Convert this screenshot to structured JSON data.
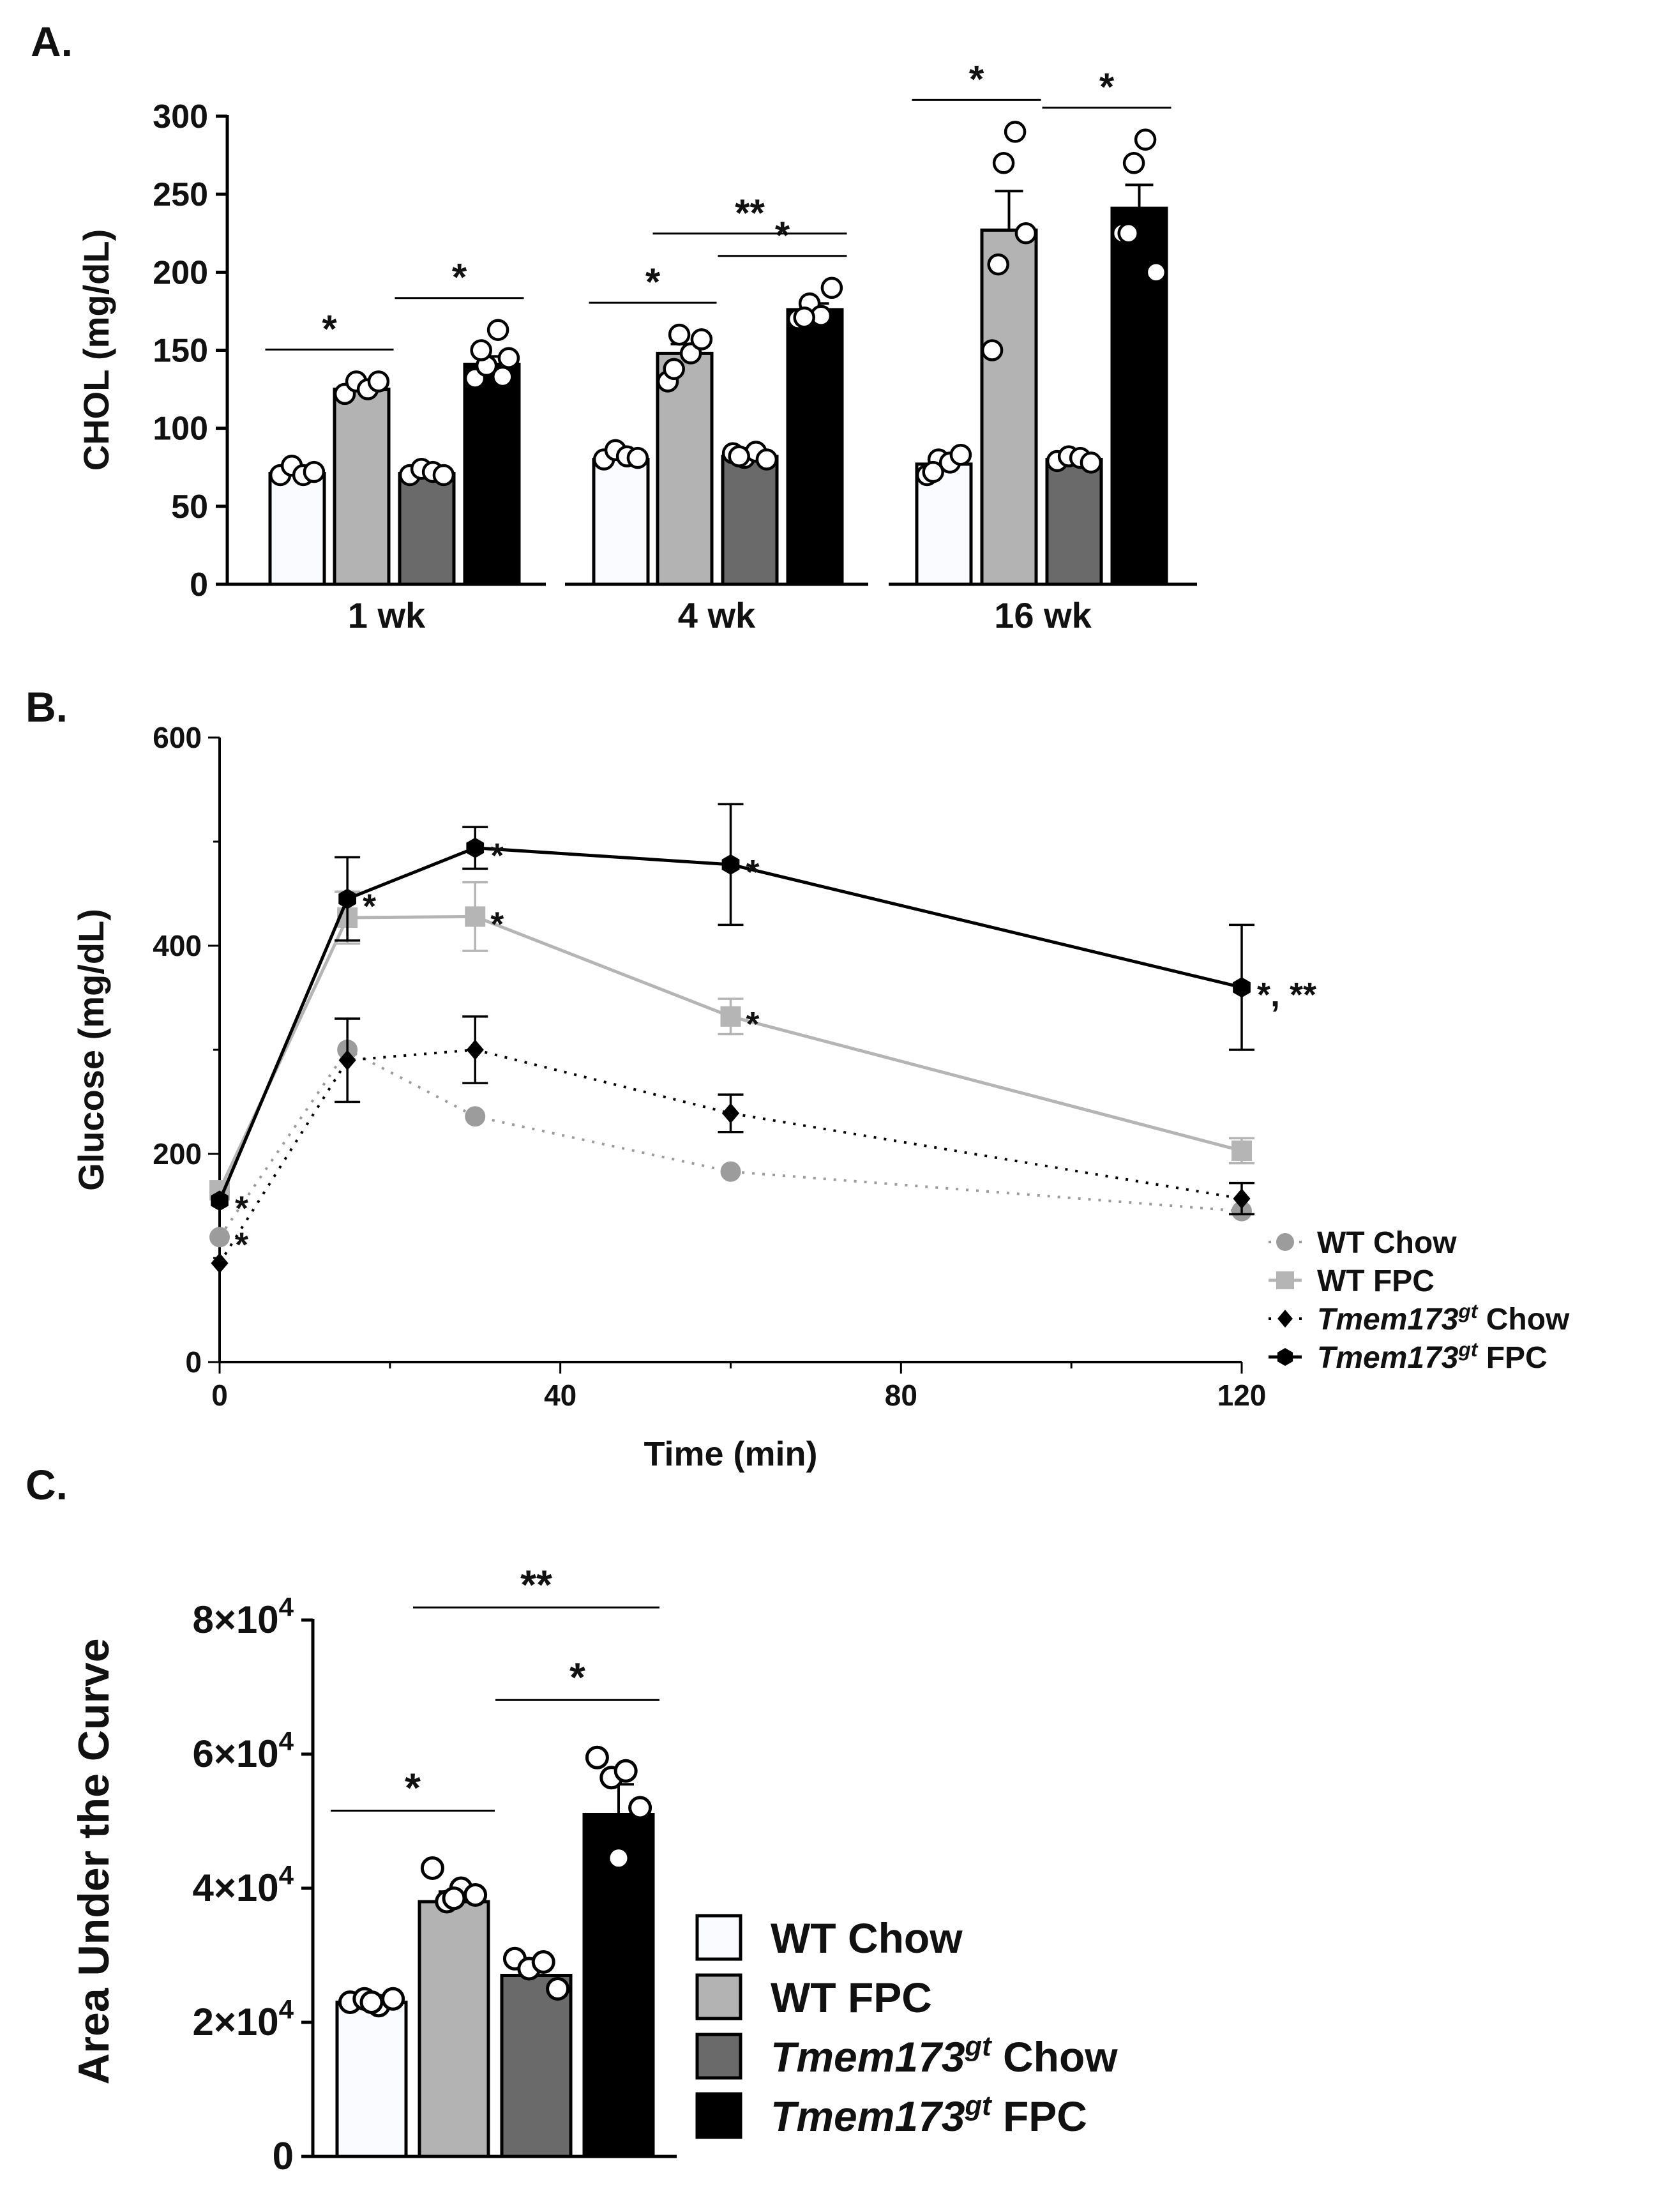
{
  "colors": {
    "wt_chow": "#f9fbff",
    "wt_fpc": "#b3b3b3",
    "tm_chow": "#6a6a6a",
    "tm_fpc": "#000000",
    "line_wt_chow": "#9c9c9c",
    "line_wt_fpc": "#b5b5b5",
    "line_tm": "#000000"
  },
  "panel_labels": {
    "a": "A.",
    "b": "B.",
    "c": "C."
  },
  "chart_data": [
    {
      "id": "A",
      "type": "bar",
      "ylabel": "CHOL (mg/dL)",
      "ylim": [
        0,
        300
      ],
      "yticks": [
        "0",
        "50",
        "100",
        "150",
        "200",
        "250",
        "300"
      ],
      "groups": [
        "1 wk",
        "4 wk",
        "16 wk"
      ],
      "series_names": [
        "WT Chow",
        "WT FPC",
        "Tmem173gt Chow",
        "Tmem173gt FPC"
      ],
      "bars": [
        {
          "group": "1 wk",
          "series": "WT Chow",
          "mean": 71,
          "sem": 2,
          "points": [
            70,
            76,
            70,
            72
          ]
        },
        {
          "group": "1 wk",
          "series": "WT FPC",
          "mean": 125,
          "sem": 2,
          "points": [
            122,
            130,
            125,
            130
          ]
        },
        {
          "group": "1 wk",
          "series": "Tmem173gt Chow",
          "mean": 71,
          "sem": 2,
          "points": [
            70,
            74,
            72,
            70
          ]
        },
        {
          "group": "1 wk",
          "series": "Tmem173gt FPC",
          "mean": 141,
          "sem": 5,
          "points": [
            132,
            140,
            163,
            145,
            150,
            133
          ]
        },
        {
          "group": "4 wk",
          "series": "WT Chow",
          "mean": 80,
          "sem": 2,
          "points": [
            80,
            86,
            82,
            81
          ]
        },
        {
          "group": "4 wk",
          "series": "WT FPC",
          "mean": 148,
          "sem": 6,
          "points": [
            130,
            160,
            148,
            157,
            138
          ]
        },
        {
          "group": "4 wk",
          "series": "Tmem173gt Chow",
          "mean": 82,
          "sem": 2,
          "points": [
            84,
            81,
            85,
            80,
            82
          ]
        },
        {
          "group": "4 wk",
          "series": "Tmem173gt FPC",
          "mean": 176,
          "sem": 4,
          "points": [
            170,
            180,
            172,
            190,
            171
          ]
        },
        {
          "group": "16 wk",
          "series": "WT Chow",
          "mean": 77,
          "sem": 3,
          "points": [
            70,
            80,
            78,
            83,
            72
          ]
        },
        {
          "group": "16 wk",
          "series": "WT FPC",
          "mean": 227,
          "sem": 25,
          "points": [
            150,
            270,
            290,
            225,
            205
          ]
        },
        {
          "group": "16 wk",
          "series": "Tmem173gt Chow",
          "mean": 80,
          "sem": 2,
          "points": [
            79,
            82,
            81,
            78
          ]
        },
        {
          "group": "16 wk",
          "series": "Tmem173gt FPC",
          "mean": 241,
          "sem": 15,
          "points": [
            225,
            270,
            285,
            200,
            225
          ]
        }
      ],
      "significance": [
        {
          "group": "1 wk",
          "from": 0,
          "to": 1,
          "label": "*"
        },
        {
          "group": "1 wk",
          "from": 2,
          "to": 3,
          "label": "*"
        },
        {
          "group": "4 wk",
          "from": 0,
          "to": 1,
          "label": "*"
        },
        {
          "group": "4 wk",
          "from": 2,
          "to": 3,
          "label": "*"
        },
        {
          "group": "4 wk",
          "from": 1,
          "to": 3,
          "label": "**"
        },
        {
          "group": "16 wk",
          "from": 0,
          "to": 1,
          "label": "*"
        },
        {
          "group": "16 wk",
          "from": 2,
          "to": 3,
          "label": "*"
        }
      ]
    },
    {
      "id": "B",
      "type": "line",
      "xlabel": "Time (min)",
      "ylabel": "Glucose (mg/dL)",
      "xlim": [
        0,
        120
      ],
      "ylim": [
        0,
        600
      ],
      "xticks": [
        "0",
        "40",
        "80",
        "120"
      ],
      "yticks": [
        "0",
        "200",
        "400",
        "600"
      ],
      "x": [
        0,
        15,
        30,
        60,
        120
      ],
      "series": [
        {
          "name": "WT Chow",
          "values": [
            120,
            300,
            236,
            183,
            145
          ],
          "err": [
            0,
            0,
            0,
            0,
            0
          ]
        },
        {
          "name": "WT FPC",
          "values": [
            165,
            427,
            428,
            332,
            203
          ],
          "err": [
            0,
            25,
            33,
            17,
            12
          ]
        },
        {
          "name": "Tmem173gt Chow",
          "values": [
            95,
            290,
            300,
            239,
            157
          ],
          "err": [
            0,
            40,
            32,
            18,
            15
          ]
        },
        {
          "name": "Tmem173gt FPC",
          "values": [
            155,
            445,
            494,
            478,
            360
          ],
          "err": [
            0,
            40,
            20,
            58,
            60
          ]
        }
      ],
      "annotations": [
        {
          "x": 0,
          "y": 155,
          "text": "*"
        },
        {
          "x": 0,
          "y": 120,
          "text": "*"
        },
        {
          "x": 15,
          "y": 445,
          "text": "*"
        },
        {
          "x": 30,
          "y": 494,
          "text": "*"
        },
        {
          "x": 30,
          "y": 428,
          "text": "*"
        },
        {
          "x": 60,
          "y": 478,
          "text": "*"
        },
        {
          "x": 60,
          "y": 332,
          "text": "*"
        },
        {
          "x": 120,
          "y": 360,
          "text": "*, **"
        }
      ],
      "legend": {
        "placement": "bottom-right",
        "items": [
          {
            "name": "WT Chow",
            "prefix": "WT",
            "suffix": " Chow"
          },
          {
            "name": "WT FPC",
            "prefix": "WT",
            "suffix": " FPC"
          },
          {
            "name": "Tmem173gt Chow",
            "italic": "Tmem173",
            "sup": "gt",
            "suffix": " Chow"
          },
          {
            "name": "Tmem173gt FPC",
            "italic": "Tmem173",
            "sup": "gt",
            "suffix": " FPC"
          }
        ]
      }
    },
    {
      "id": "C",
      "type": "bar",
      "ylabel": "Area Under the Curve",
      "ylim": [
        0,
        80000
      ],
      "yticks": [
        {
          "value": 0,
          "label": "0"
        },
        {
          "value": 20000,
          "label": "2×10",
          "exp": "4"
        },
        {
          "value": 40000,
          "label": "4×10",
          "exp": "4"
        },
        {
          "value": 60000,
          "label": "6×10",
          "exp": "4"
        },
        {
          "value": 80000,
          "label": "8×10",
          "exp": "4"
        }
      ],
      "categories": [
        "WT Chow",
        "WT FPC",
        "Tmem173gt Chow",
        "Tmem173gt FPC"
      ],
      "values": [
        23000,
        38000,
        27000,
        51000
      ],
      "sem": [
        500,
        1500,
        1200,
        4500
      ],
      "points": [
        [
          23000,
          23500,
          22500,
          23500,
          23000
        ],
        [
          43000,
          38000,
          40000,
          39000,
          38500
        ],
        [
          29500,
          28000,
          29000,
          25000
        ],
        [
          59500,
          56500,
          57500,
          52000,
          44500
        ]
      ],
      "significance": [
        {
          "from": 0,
          "to": 1,
          "label": "*"
        },
        {
          "from": 2,
          "to": 3,
          "label": "*"
        },
        {
          "from": 1,
          "to": 3,
          "label": "**"
        }
      ],
      "legend": {
        "placement": "bottom-right",
        "items": [
          {
            "name": "WT Chow",
            "prefix": "WT",
            "suffix": " Chow"
          },
          {
            "name": "WT FPC",
            "prefix": "WT",
            "suffix": " FPC"
          },
          {
            "name": "Tmem173gt Chow",
            "italic": "Tmem173",
            "sup": "gt",
            "suffix": " Chow"
          },
          {
            "name": "Tmem173gt FPC",
            "italic": "Tmem173",
            "sup": "gt",
            "suffix": " FPC"
          }
        ]
      }
    }
  ]
}
